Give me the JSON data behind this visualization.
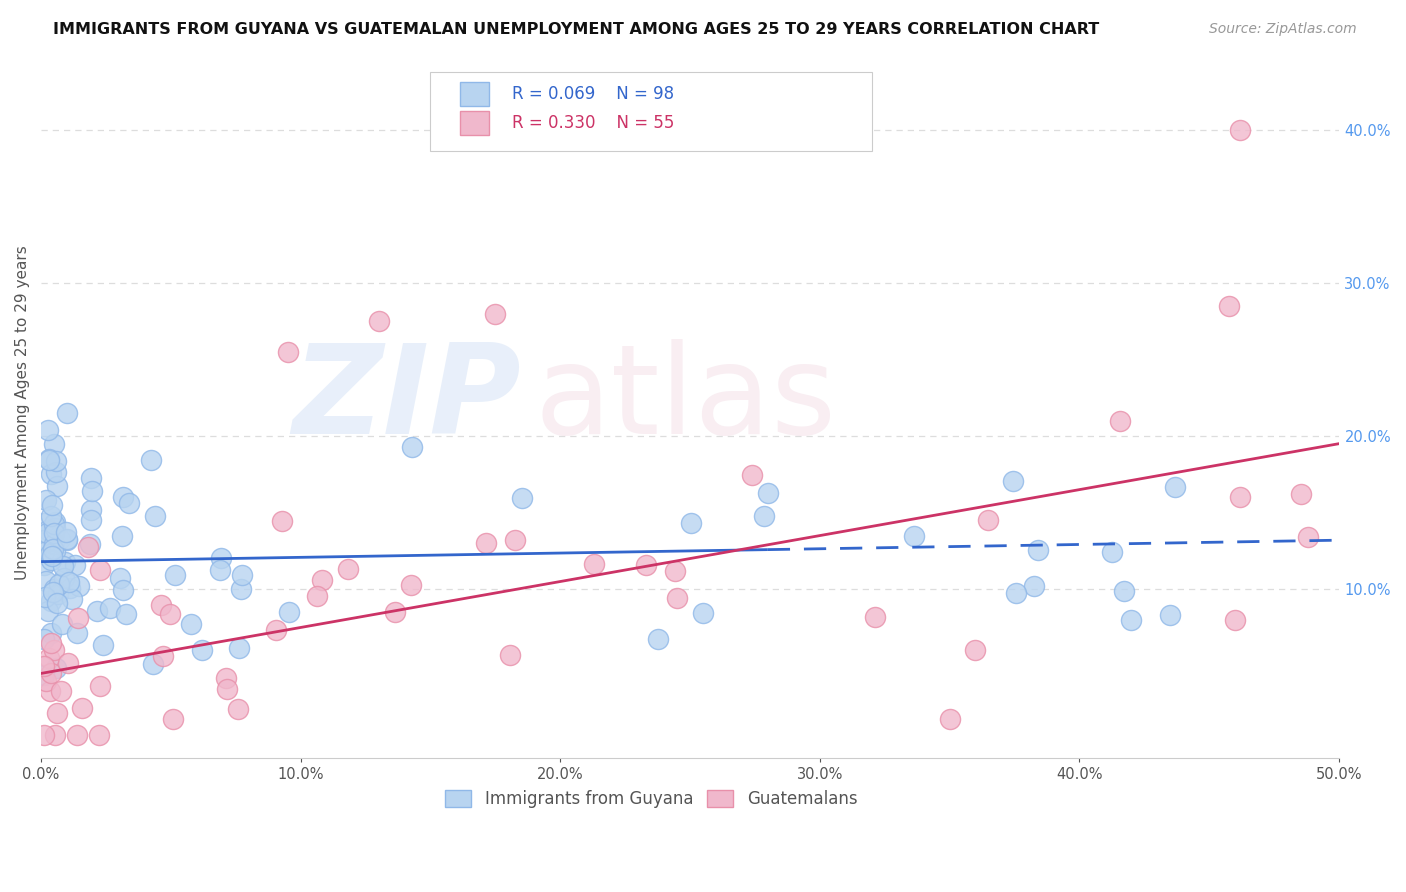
{
  "title": "IMMIGRANTS FROM GUYANA VS GUATEMALAN UNEMPLOYMENT AMONG AGES 25 TO 29 YEARS CORRELATION CHART",
  "source": "Source: ZipAtlas.com",
  "ylabel": "Unemployment Among Ages 25 to 29 years",
  "x_min": 0.0,
  "x_max": 0.5,
  "y_min": -0.01,
  "y_max": 0.44,
  "background_color": "#ffffff",
  "series1_color": "#b8d4f0",
  "series1_edge_color": "#90b8e8",
  "series2_color": "#f0b8cc",
  "series2_edge_color": "#e890aa",
  "trend1_color": "#3366cc",
  "trend2_color": "#cc3366",
  "legend_label1": "Immigrants from Guyana",
  "legend_label2": "Guatemalans",
  "R1": 0.069,
  "N1": 98,
  "R2": 0.33,
  "N2": 55,
  "grid_color": "#dddddd",
  "right_tick_color": "#5599ee",
  "title_fontsize": 11.5,
  "source_fontsize": 10,
  "tick_fontsize": 10.5,
  "ylabel_fontsize": 11,
  "trend1_intercept": 0.118,
  "trend1_slope": 0.028,
  "trend2_intercept": 0.045,
  "trend2_slope": 0.3
}
